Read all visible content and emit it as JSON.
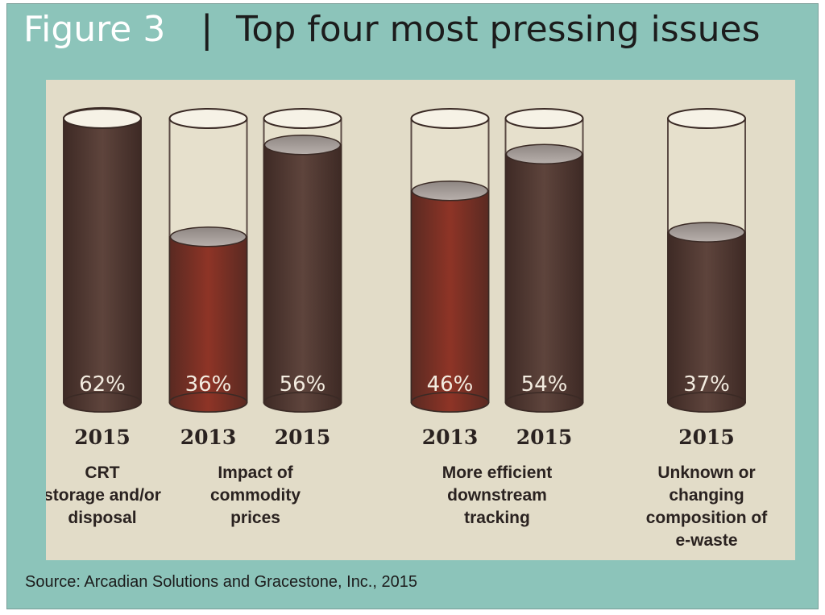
{
  "header": {
    "figure_label": "Figure 3",
    "separator": "|",
    "title": "Top four most pressing issues"
  },
  "source": "Source:  Arcadian Solutions and Gracestone, Inc., 2015",
  "colors": {
    "frame": "#8cc4ba",
    "panel": "#e2dcc8",
    "fill_2015": "#4e3630",
    "fill_2013": "#7a2e22",
    "empty_tube": "#e6e0cc"
  },
  "chart_data": {
    "type": "bar",
    "title": "Top four most pressing issues",
    "unit": "%",
    "ylim": [
      0,
      100
    ],
    "groups": [
      {
        "category_lines": [
          "CRT",
          "storage and/or",
          "disposal"
        ],
        "bars": [
          {
            "year": "2015",
            "value": 62,
            "label": "62%"
          }
        ]
      },
      {
        "category_lines": [
          "Impact of",
          "commodity",
          "prices"
        ],
        "bars": [
          {
            "year": "2013",
            "value": 36,
            "label": "36%"
          },
          {
            "year": "2015",
            "value": 56,
            "label": "56%"
          }
        ]
      },
      {
        "category_lines": [
          "More efficient",
          "downstream",
          "tracking"
        ],
        "bars": [
          {
            "year": "2013",
            "value": 46,
            "label": "46%"
          },
          {
            "year": "2015",
            "value": 54,
            "label": "54%"
          }
        ]
      },
      {
        "category_lines": [
          "Unknown or",
          "changing",
          "composition of",
          "e-waste"
        ],
        "bars": [
          {
            "year": "2015",
            "value": 37,
            "label": "37%"
          }
        ]
      }
    ]
  }
}
